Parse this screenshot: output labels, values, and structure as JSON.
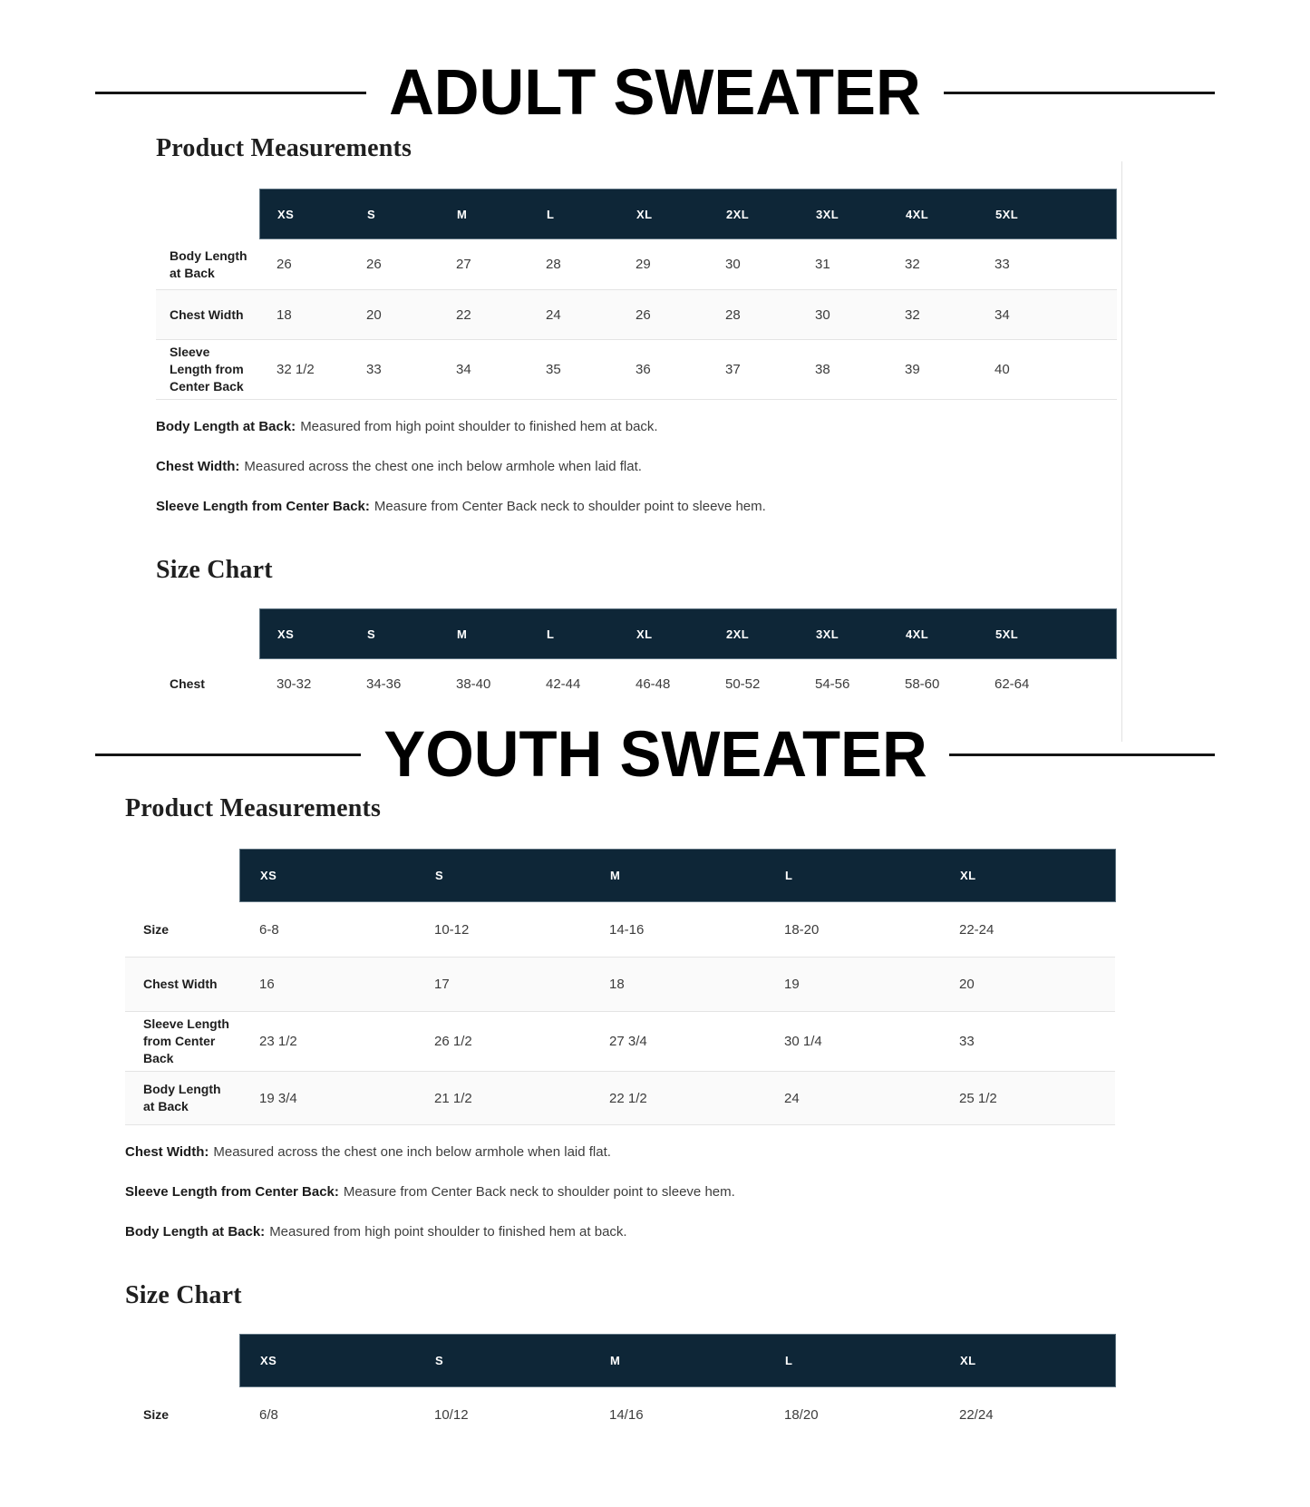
{
  "colors": {
    "table_header_bg": "#0e2637",
    "stripe_row_bg": "#fafafa",
    "row_border": "#e4e4e4",
    "panel_border": "#e2e2e2",
    "title_rule": "#141414"
  },
  "adult": {
    "title": "ADULT SWEATER",
    "pm_heading": "Product Measurements",
    "sc_heading": "Size Chart",
    "pm_table": {
      "headers": [
        "XS",
        "S",
        "M",
        "L",
        "XL",
        "2XL",
        "3XL",
        "4XL",
        "5XL"
      ],
      "rows": [
        {
          "label": "Body Length at Back",
          "values": [
            "26",
            "26",
            "27",
            "28",
            "29",
            "30",
            "31",
            "32",
            "33"
          ]
        },
        {
          "label": "Chest Width",
          "values": [
            "18",
            "20",
            "22",
            "24",
            "26",
            "28",
            "30",
            "32",
            "34"
          ]
        },
        {
          "label": "Sleeve Length from Center Back",
          "values": [
            "32 1/2",
            "33",
            "34",
            "35",
            "36",
            "37",
            "38",
            "39",
            "40"
          ]
        }
      ]
    },
    "notes": [
      {
        "term": "Body Length at Back:",
        "text": "Measured from high point shoulder to finished hem at back."
      },
      {
        "term": "Chest Width:",
        "text": "Measured across the chest one inch below armhole when laid flat."
      },
      {
        "term": "Sleeve Length from Center Back:",
        "text": "Measure from Center Back neck to shoulder point to sleeve hem."
      }
    ],
    "sc_table": {
      "headers": [
        "XS",
        "S",
        "M",
        "L",
        "XL",
        "2XL",
        "3XL",
        "4XL",
        "5XL"
      ],
      "row": {
        "label": "Chest",
        "values": [
          "30-32",
          "34-36",
          "38-40",
          "42-44",
          "46-48",
          "50-52",
          "54-56",
          "58-60",
          "62-64"
        ]
      }
    }
  },
  "youth": {
    "title": "YOUTH SWEATER",
    "pm_heading": "Product Measurements",
    "sc_heading": "Size Chart",
    "pm_table": {
      "headers": [
        "XS",
        "S",
        "M",
        "L",
        "XL"
      ],
      "rows": [
        {
          "label": "Size",
          "values": [
            "6-8",
            "10-12",
            "14-16",
            "18-20",
            "22-24"
          ]
        },
        {
          "label": "Chest Width",
          "values": [
            "16",
            "17",
            "18",
            "19",
            "20"
          ]
        },
        {
          "label": "Sleeve Length from Center Back",
          "values": [
            "23 1/2",
            "26 1/2",
            "27 3/4",
            "30 1/4",
            "33"
          ]
        },
        {
          "label": "Body Length at Back",
          "values": [
            "19 3/4",
            "21 1/2",
            "22 1/2",
            "24",
            "25 1/2"
          ]
        }
      ]
    },
    "notes": [
      {
        "term": "Chest Width:",
        "text": "Measured across the chest one inch below armhole when laid flat."
      },
      {
        "term": "Sleeve Length from Center Back:",
        "text": "Measure from Center Back neck to shoulder point to sleeve hem."
      },
      {
        "term": "Body Length at Back:",
        "text": "Measured from high point shoulder to finished hem at back."
      }
    ],
    "sc_table": {
      "headers": [
        "XS",
        "S",
        "M",
        "L",
        "XL"
      ],
      "row": {
        "label": "Size",
        "values": [
          "6/8",
          "10/12",
          "14/16",
          "18/20",
          "22/24"
        ]
      }
    }
  }
}
